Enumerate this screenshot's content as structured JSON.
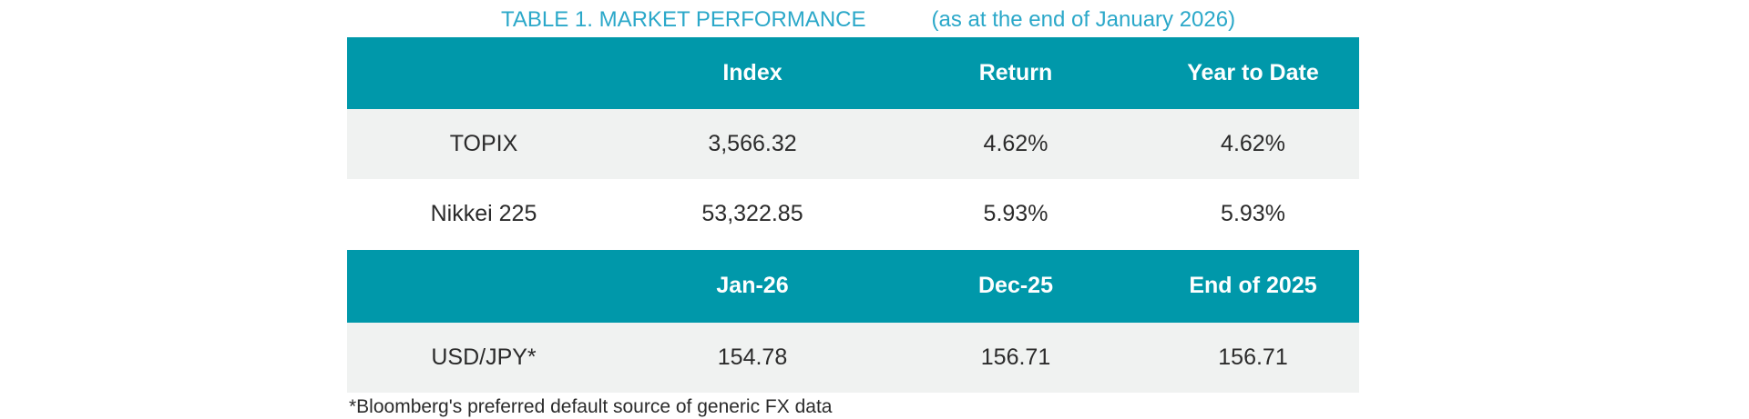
{
  "title": {
    "main": "TABLE 1. MARKET PERFORMANCE",
    "suffix": "(as at the end of January 2026)"
  },
  "colors": {
    "header_teal": "#0098AA",
    "title_cyan": "#2BA8C9",
    "row_alt_gray": "#F0F2F1",
    "text": "#2B2B2B"
  },
  "table": {
    "section1": {
      "headers": [
        "",
        "Index",
        "Return",
        "Year to Date"
      ],
      "rows": [
        {
          "label": "TOPIX",
          "values": [
            "3,566.32",
            "4.62%",
            "4.62%"
          ]
        },
        {
          "label": "Nikkei 225",
          "values": [
            "53,322.85",
            "5.93%",
            "5.93%"
          ]
        }
      ]
    },
    "section2": {
      "headers": [
        "",
        "Jan-26",
        "Dec-25",
        "End of 2025"
      ],
      "rows": [
        {
          "label": "USD/JPY*",
          "values": [
            "154.78",
            "156.71",
            "156.71"
          ]
        }
      ]
    }
  },
  "footnote": "*Bloomberg's preferred default source of generic FX data"
}
